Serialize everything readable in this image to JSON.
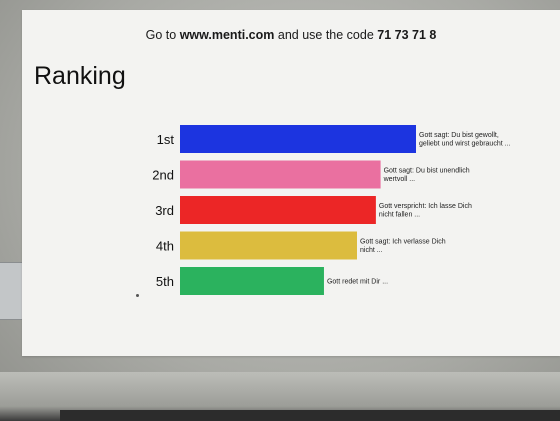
{
  "join_prompt": {
    "prefix": "Go to ",
    "url": "www.menti.com",
    "middle": " and use the code ",
    "code": "71 73 71 8"
  },
  "slide_title": "Ranking",
  "chart_data": {
    "type": "bar",
    "orientation": "horizontal",
    "title": "Ranking",
    "categories": [
      "1st",
      "2nd",
      "3rd",
      "4th",
      "5th"
    ],
    "values": [
      100,
      85,
      83,
      75,
      61
    ],
    "value_unit": "relative bar length (% of longest)",
    "colors": [
      "#1c34e0",
      "#ea70a0",
      "#ec2626",
      "#dcbc3e",
      "#2bb25e"
    ],
    "bar_labels": [
      [
        "Gott sagt: Du bist gewollt,",
        "geliebt und wirst gebraucht ..."
      ],
      [
        "Gott sagt: Du bist unendlich",
        "wertvoll ..."
      ],
      [
        "Gott verspricht: Ich lasse Dich",
        "nicht fallen ..."
      ],
      [
        "Gott sagt: Ich verlasse Dich",
        "nicht ..."
      ],
      [
        "Gott redet mit Dir ..."
      ]
    ],
    "grid": false,
    "legend": "none"
  }
}
